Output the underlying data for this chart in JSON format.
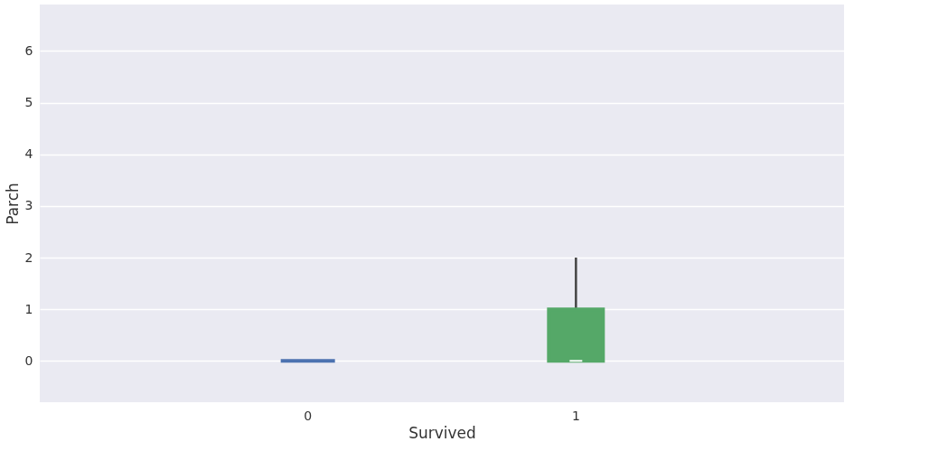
{
  "chart_data": {
    "type": "box",
    "xlabel": "Survived",
    "ylabel": "Parch",
    "categories": [
      "0",
      "1"
    ],
    "colors": [
      "#4c72b0",
      "#55a868"
    ],
    "boxes": [
      {
        "low": 0,
        "q1": 0,
        "median": 0,
        "q3": 0,
        "high": 0
      },
      {
        "low": 0,
        "q1": 0,
        "median": 0,
        "q3": 1,
        "high": 2
      }
    ],
    "ylim": [
      -0.8,
      6.9
    ],
    "yticks": [
      0,
      1,
      2,
      3,
      4,
      5,
      6
    ],
    "grid": "y"
  }
}
